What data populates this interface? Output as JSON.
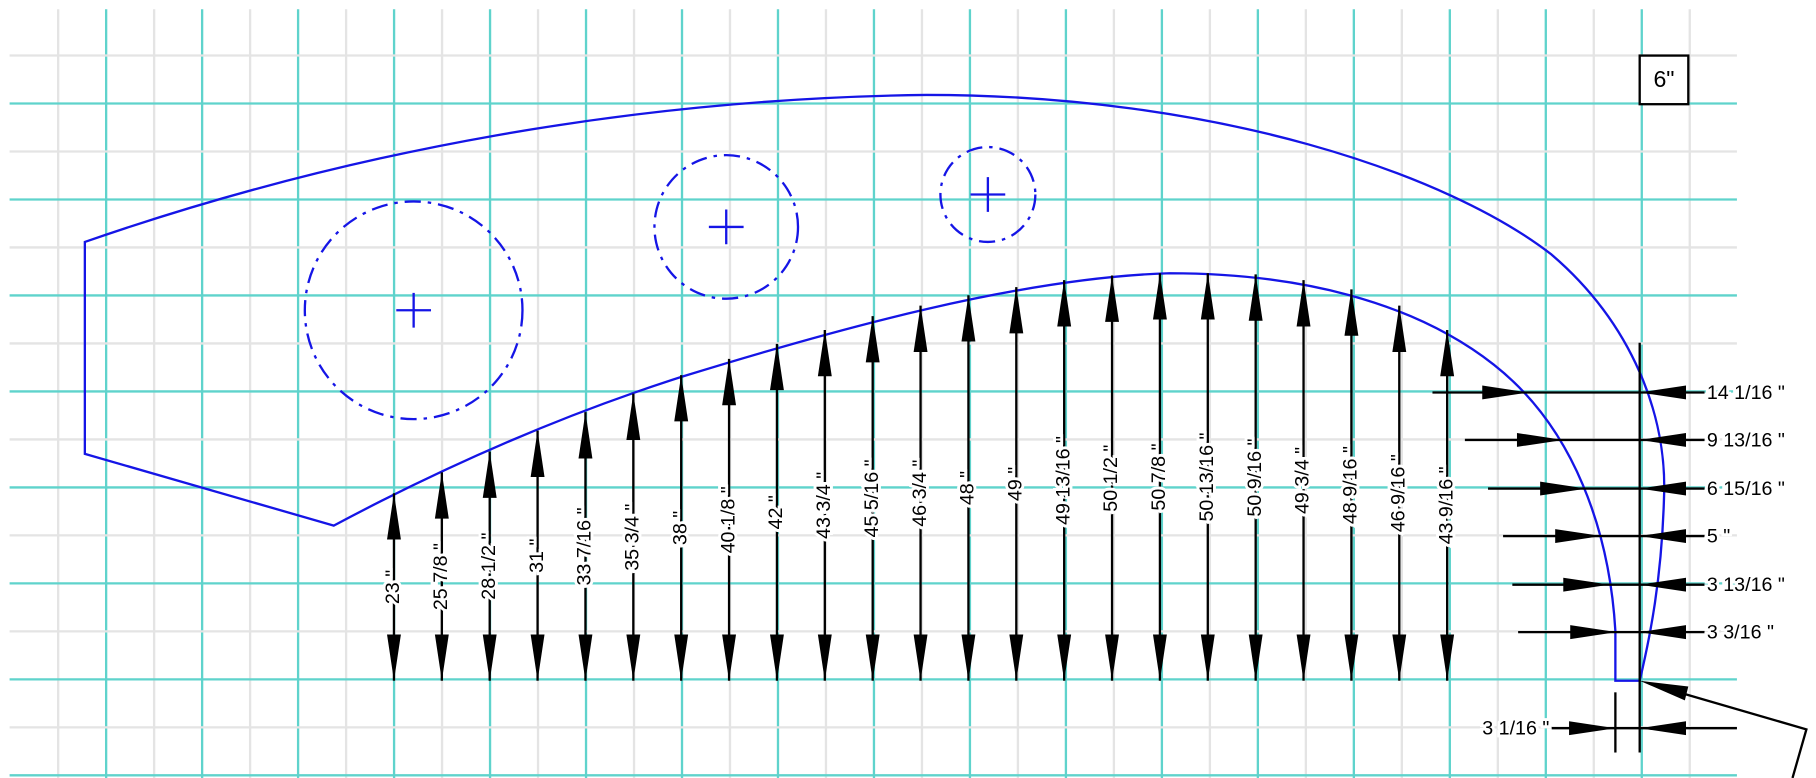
{
  "scale_label": "6\"",
  "vertical_dimensions": [
    "23 \"",
    "25 7/8 \"",
    "28 1/2 \"",
    "31 \"",
    "33 7/16 \"",
    "35 3/4 \"",
    "38 \"",
    "40 1/8 \"",
    "42 \"",
    "43 3/4 \"",
    "45 5/16 \"",
    "46 3/4 \"",
    "48 \"",
    "49 \"",
    "49 13/16 \"",
    "50 1/2 \"",
    "50 7/8 \"",
    "50 13/16 \"",
    "50 9/16 \"",
    "49 3/4 \"",
    "48 9/16 \"",
    "46 9/16 \"",
    "43 9/16 \""
  ],
  "horizontal_dimensions": [
    "14 1/16 \"",
    "9 13/16 \"",
    "6 15/16 \"",
    "5 \"",
    "3 13/16 \"",
    "3 3/16 \""
  ],
  "bottom_dimension": "3 1/16 \""
}
